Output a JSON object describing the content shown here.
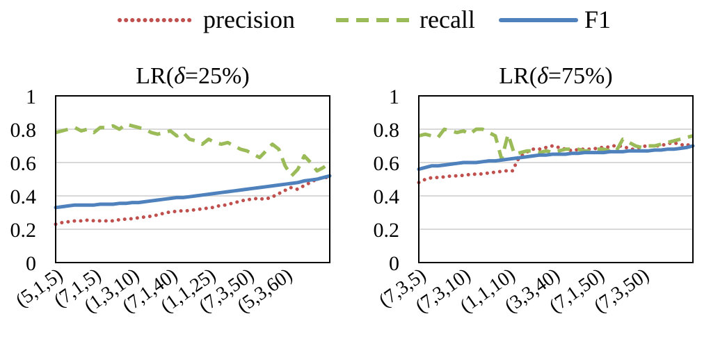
{
  "legend": [
    {
      "name": "precision",
      "color": "#C0504D",
      "style": "dotted"
    },
    {
      "name": "recall",
      "color": "#9BBB59",
      "style": "dashed"
    },
    {
      "name": "F1",
      "color": "#4F81BD",
      "style": "solid"
    }
  ],
  "chart_data": [
    {
      "type": "line",
      "title_prefix": "LR(",
      "title_symbol": "δ",
      "title_suffix": "=25%)",
      "ylim": [
        0,
        1
      ],
      "yticks": [
        "0",
        "0.2",
        "0.4",
        "0.6",
        "0.8",
        "1"
      ],
      "ytick_values": [
        0,
        0.2,
        0.4,
        0.6,
        0.8,
        1
      ],
      "grid": true,
      "legend_position": "top",
      "xtick_labels": [
        "(5,1,5)",
        "(7,1,5)",
        "(1,3,10)",
        "(7,1,40)",
        "(1,1,25)",
        "(7,3,50)",
        "(5,3,60)"
      ],
      "xtick_positions": [
        0,
        6,
        12,
        18,
        24,
        30,
        36
      ],
      "series": [
        {
          "name": "precision",
          "values": [
            0.23,
            0.24,
            0.245,
            0.25,
            0.25,
            0.255,
            0.25,
            0.25,
            0.25,
            0.25,
            0.26,
            0.26,
            0.265,
            0.27,
            0.275,
            0.28,
            0.29,
            0.3,
            0.305,
            0.31,
            0.31,
            0.315,
            0.32,
            0.325,
            0.33,
            0.34,
            0.345,
            0.355,
            0.365,
            0.375,
            0.38,
            0.385,
            0.38,
            0.39,
            0.41,
            0.43,
            0.45,
            0.44,
            0.46,
            0.48,
            0.5,
            0.51,
            0.51
          ]
        },
        {
          "name": "recall",
          "values": [
            0.78,
            0.79,
            0.8,
            0.81,
            0.79,
            0.8,
            0.78,
            0.81,
            0.81,
            0.82,
            0.8,
            0.83,
            0.82,
            0.81,
            0.8,
            0.78,
            0.77,
            0.78,
            0.79,
            0.76,
            0.78,
            0.74,
            0.73,
            0.71,
            0.74,
            0.72,
            0.71,
            0.72,
            0.7,
            0.68,
            0.67,
            0.65,
            0.63,
            0.67,
            0.71,
            0.68,
            0.58,
            0.52,
            0.56,
            0.64,
            0.6,
            0.55,
            0.57,
            0.6
          ]
        },
        {
          "name": "F1",
          "values": [
            0.33,
            0.335,
            0.34,
            0.345,
            0.345,
            0.345,
            0.345,
            0.35,
            0.35,
            0.35,
            0.355,
            0.355,
            0.36,
            0.36,
            0.365,
            0.37,
            0.375,
            0.38,
            0.385,
            0.39,
            0.39,
            0.395,
            0.4,
            0.405,
            0.41,
            0.415,
            0.42,
            0.425,
            0.43,
            0.435,
            0.44,
            0.445,
            0.45,
            0.455,
            0.46,
            0.465,
            0.47,
            0.475,
            0.48,
            0.49,
            0.495,
            0.5,
            0.51,
            0.52
          ]
        }
      ]
    },
    {
      "type": "line",
      "title_prefix": "LR(",
      "title_symbol": "δ",
      "title_suffix": "=75%)",
      "ylim": [
        0,
        1
      ],
      "yticks": [
        "0",
        "0.2",
        "0.4",
        "0.6",
        "0.8",
        "1"
      ],
      "ytick_values": [
        0,
        0.2,
        0.4,
        0.6,
        0.8,
        1
      ],
      "grid": true,
      "legend_position": "top",
      "xtick_labels": [
        "(7,3,5)",
        "(7,3,10)",
        "(1,1,10)",
        "(3,3,40)",
        "(7,1,50)",
        "(7,3,50)"
      ],
      "xtick_positions": [
        0,
        7,
        14,
        21,
        28,
        35
      ],
      "series": [
        {
          "name": "precision",
          "values": [
            0.48,
            0.5,
            0.51,
            0.51,
            0.515,
            0.52,
            0.52,
            0.525,
            0.53,
            0.53,
            0.535,
            0.54,
            0.545,
            0.55,
            0.55,
            0.63,
            0.66,
            0.68,
            0.68,
            0.69,
            0.7,
            0.69,
            0.68,
            0.67,
            0.68,
            0.68,
            0.68,
            0.69,
            0.69,
            0.7,
            0.7,
            0.69,
            0.68,
            0.69,
            0.7,
            0.7,
            0.7,
            0.71,
            0.72,
            0.71,
            0.7,
            0.72
          ]
        },
        {
          "name": "recall",
          "values": [
            0.76,
            0.77,
            0.76,
            0.75,
            0.8,
            0.79,
            0.78,
            0.79,
            0.77,
            0.8,
            0.8,
            0.78,
            0.76,
            0.62,
            0.77,
            0.65,
            0.66,
            0.67,
            0.67,
            0.66,
            0.67,
            0.66,
            0.67,
            0.68,
            0.68,
            0.68,
            0.67,
            0.67,
            0.68,
            0.68,
            0.67,
            0.67,
            0.74,
            0.72,
            0.7,
            0.69,
            0.7,
            0.7,
            0.71,
            0.72,
            0.73,
            0.74,
            0.75,
            0.76
          ]
        },
        {
          "name": "F1",
          "values": [
            0.56,
            0.57,
            0.58,
            0.58,
            0.585,
            0.59,
            0.595,
            0.6,
            0.6,
            0.6,
            0.605,
            0.61,
            0.61,
            0.615,
            0.62,
            0.625,
            0.63,
            0.635,
            0.64,
            0.645,
            0.645,
            0.65,
            0.65,
            0.65,
            0.655,
            0.655,
            0.66,
            0.66,
            0.66,
            0.66,
            0.665,
            0.665,
            0.665,
            0.67,
            0.67,
            0.67,
            0.67,
            0.675,
            0.675,
            0.68,
            0.68,
            0.685,
            0.69,
            0.7
          ]
        }
      ]
    }
  ]
}
